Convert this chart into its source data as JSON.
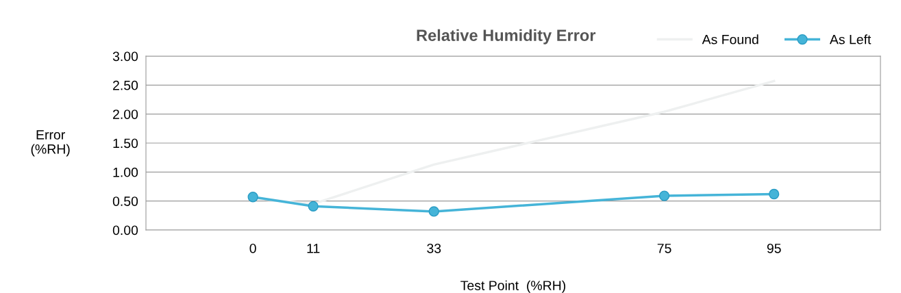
{
  "chart_data": {
    "type": "line",
    "title": "Relative Humidity Error",
    "xlabel": "Test Point  (%RH)",
    "ylabel": "Error\n(%RH)",
    "x": [
      0,
      11,
      33,
      75,
      95
    ],
    "series": [
      {
        "name": "As Found",
        "color": "#eef0f0",
        "values": [
          0.55,
          0.45,
          1.13,
          2.04,
          2.57
        ],
        "marker": "none"
      },
      {
        "name": "As Left",
        "color": "#45b4d8",
        "values": [
          0.57,
          0.41,
          0.32,
          0.59,
          0.62
        ],
        "marker": "circle"
      }
    ],
    "xlim": [
      -19.5,
      114.4
    ],
    "xticks": [
      0,
      11,
      33,
      75,
      95
    ],
    "ylim": [
      0,
      3
    ],
    "yticks": [
      {
        "value": 0,
        "label": "0.00"
      },
      {
        "value": 0.5,
        "label": "0.50"
      },
      {
        "value": 1,
        "label": "1.00"
      },
      {
        "value": 1.5,
        "label": "1.50"
      },
      {
        "value": 2,
        "label": "2.00"
      },
      {
        "value": 2.5,
        "label": "2.50"
      },
      {
        "value": 3,
        "label": "3.00"
      }
    ],
    "grid": "y",
    "legend": "top right"
  }
}
